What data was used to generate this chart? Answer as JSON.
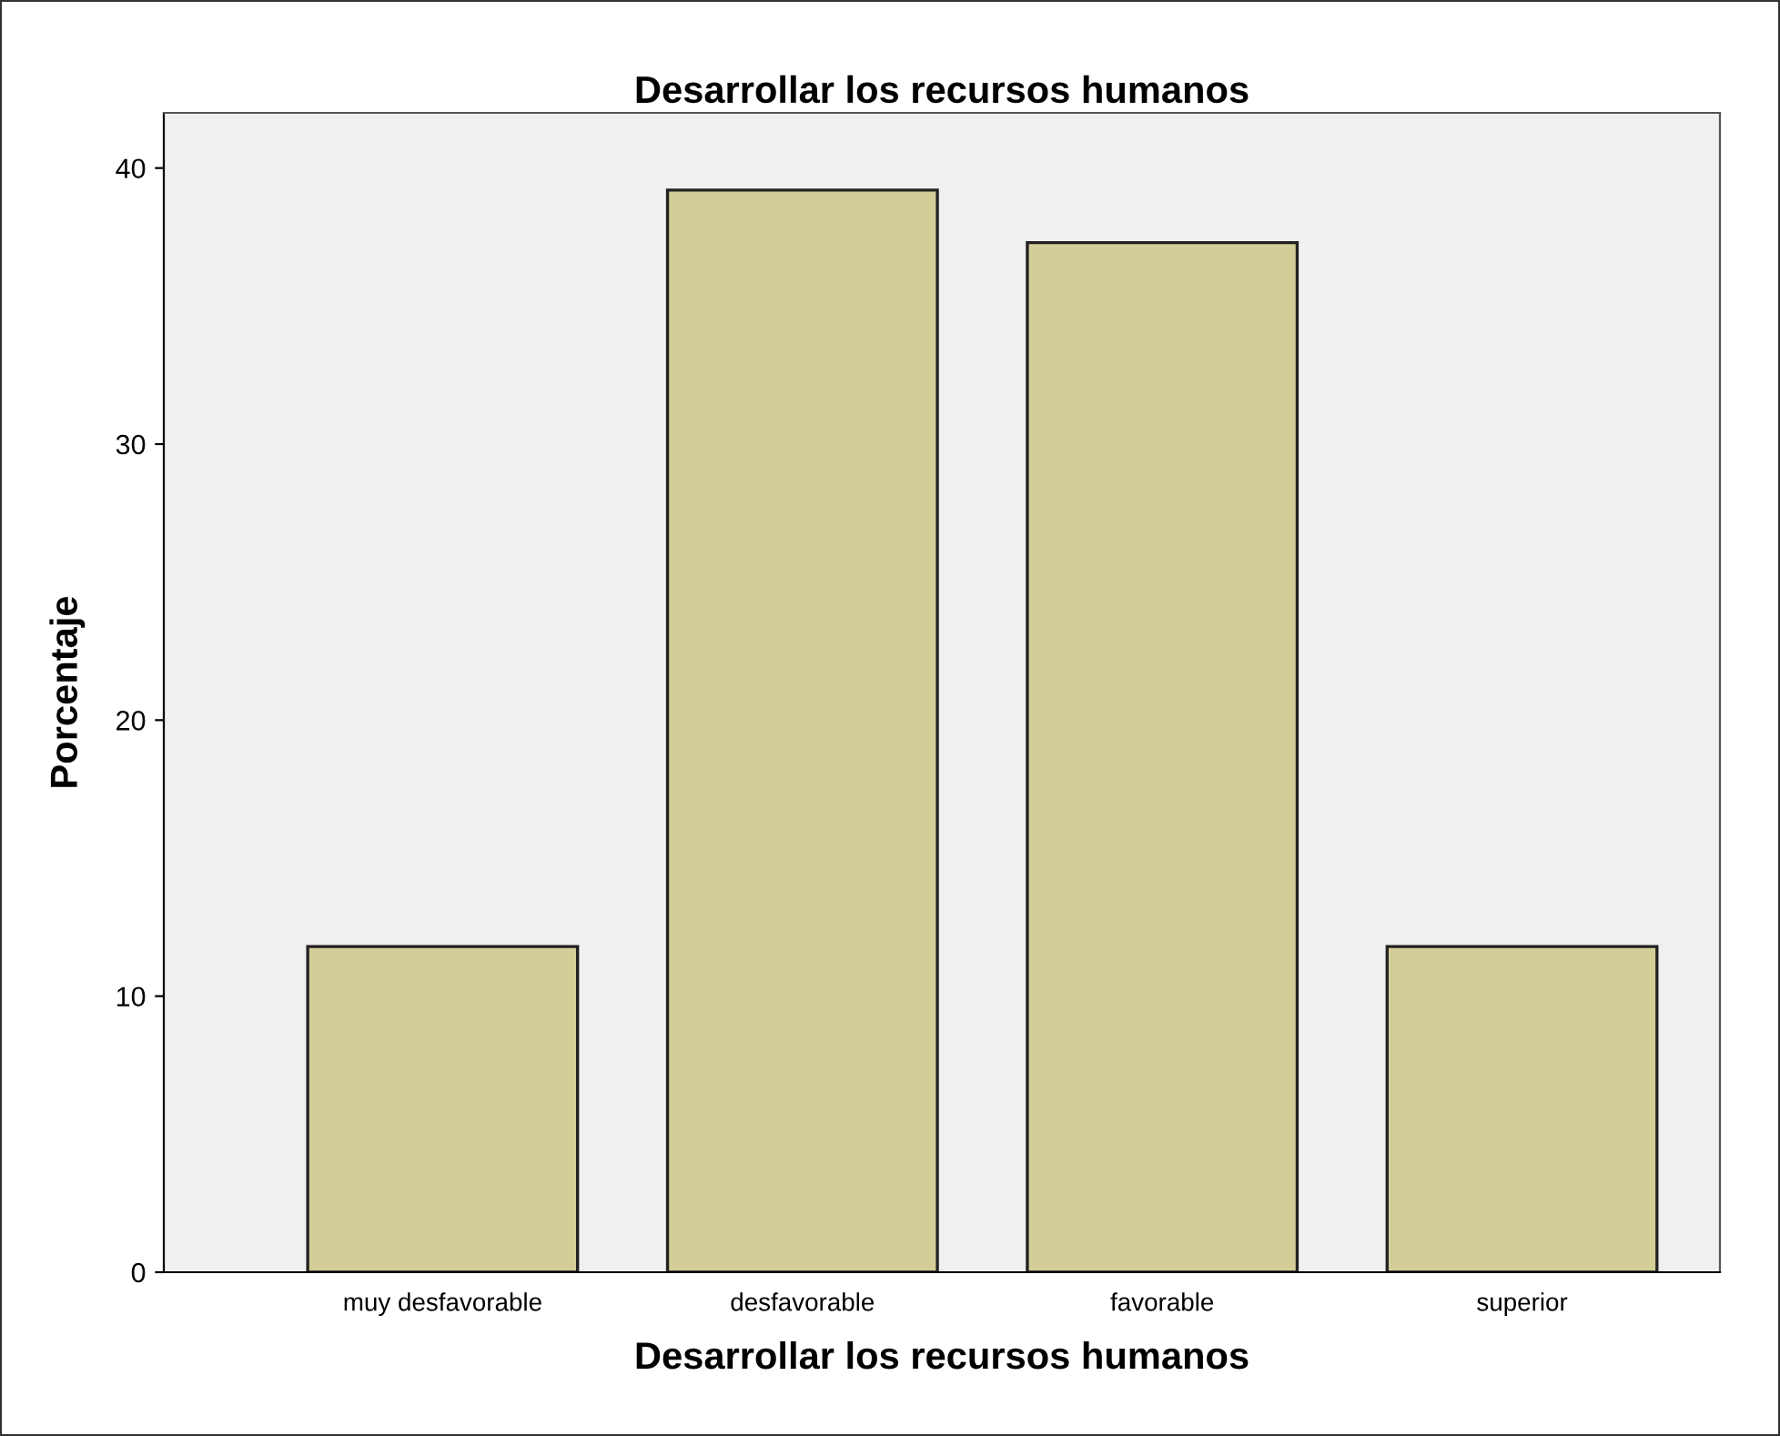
{
  "chart_data": {
    "type": "bar",
    "title": "Desarrollar los recursos humanos",
    "xlabel": "Desarrollar los recursos humanos",
    "ylabel": "Porcentaje",
    "categories": [
      "muy desfavorable",
      "desfavorable",
      "favorable",
      "superior"
    ],
    "values": [
      11.8,
      39.2,
      37.3,
      11.8
    ],
    "color": "#d3cd98",
    "ylim": [
      0,
      42
    ],
    "yticks": [
      0,
      10,
      20,
      30,
      40
    ],
    "grid": false,
    "legend": false
  }
}
